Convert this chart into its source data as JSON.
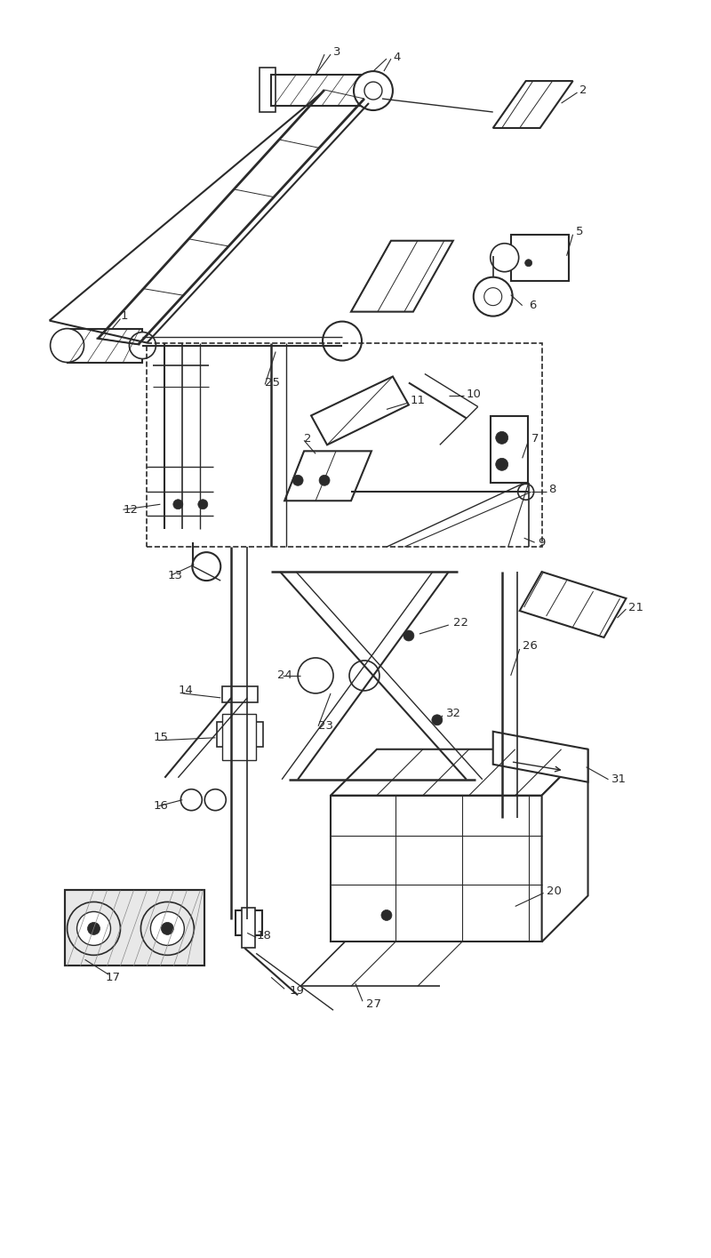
{
  "bg_color": "#ffffff",
  "line_color": "#2a2a2a",
  "fig_width": 8.0,
  "fig_height": 14.15
}
